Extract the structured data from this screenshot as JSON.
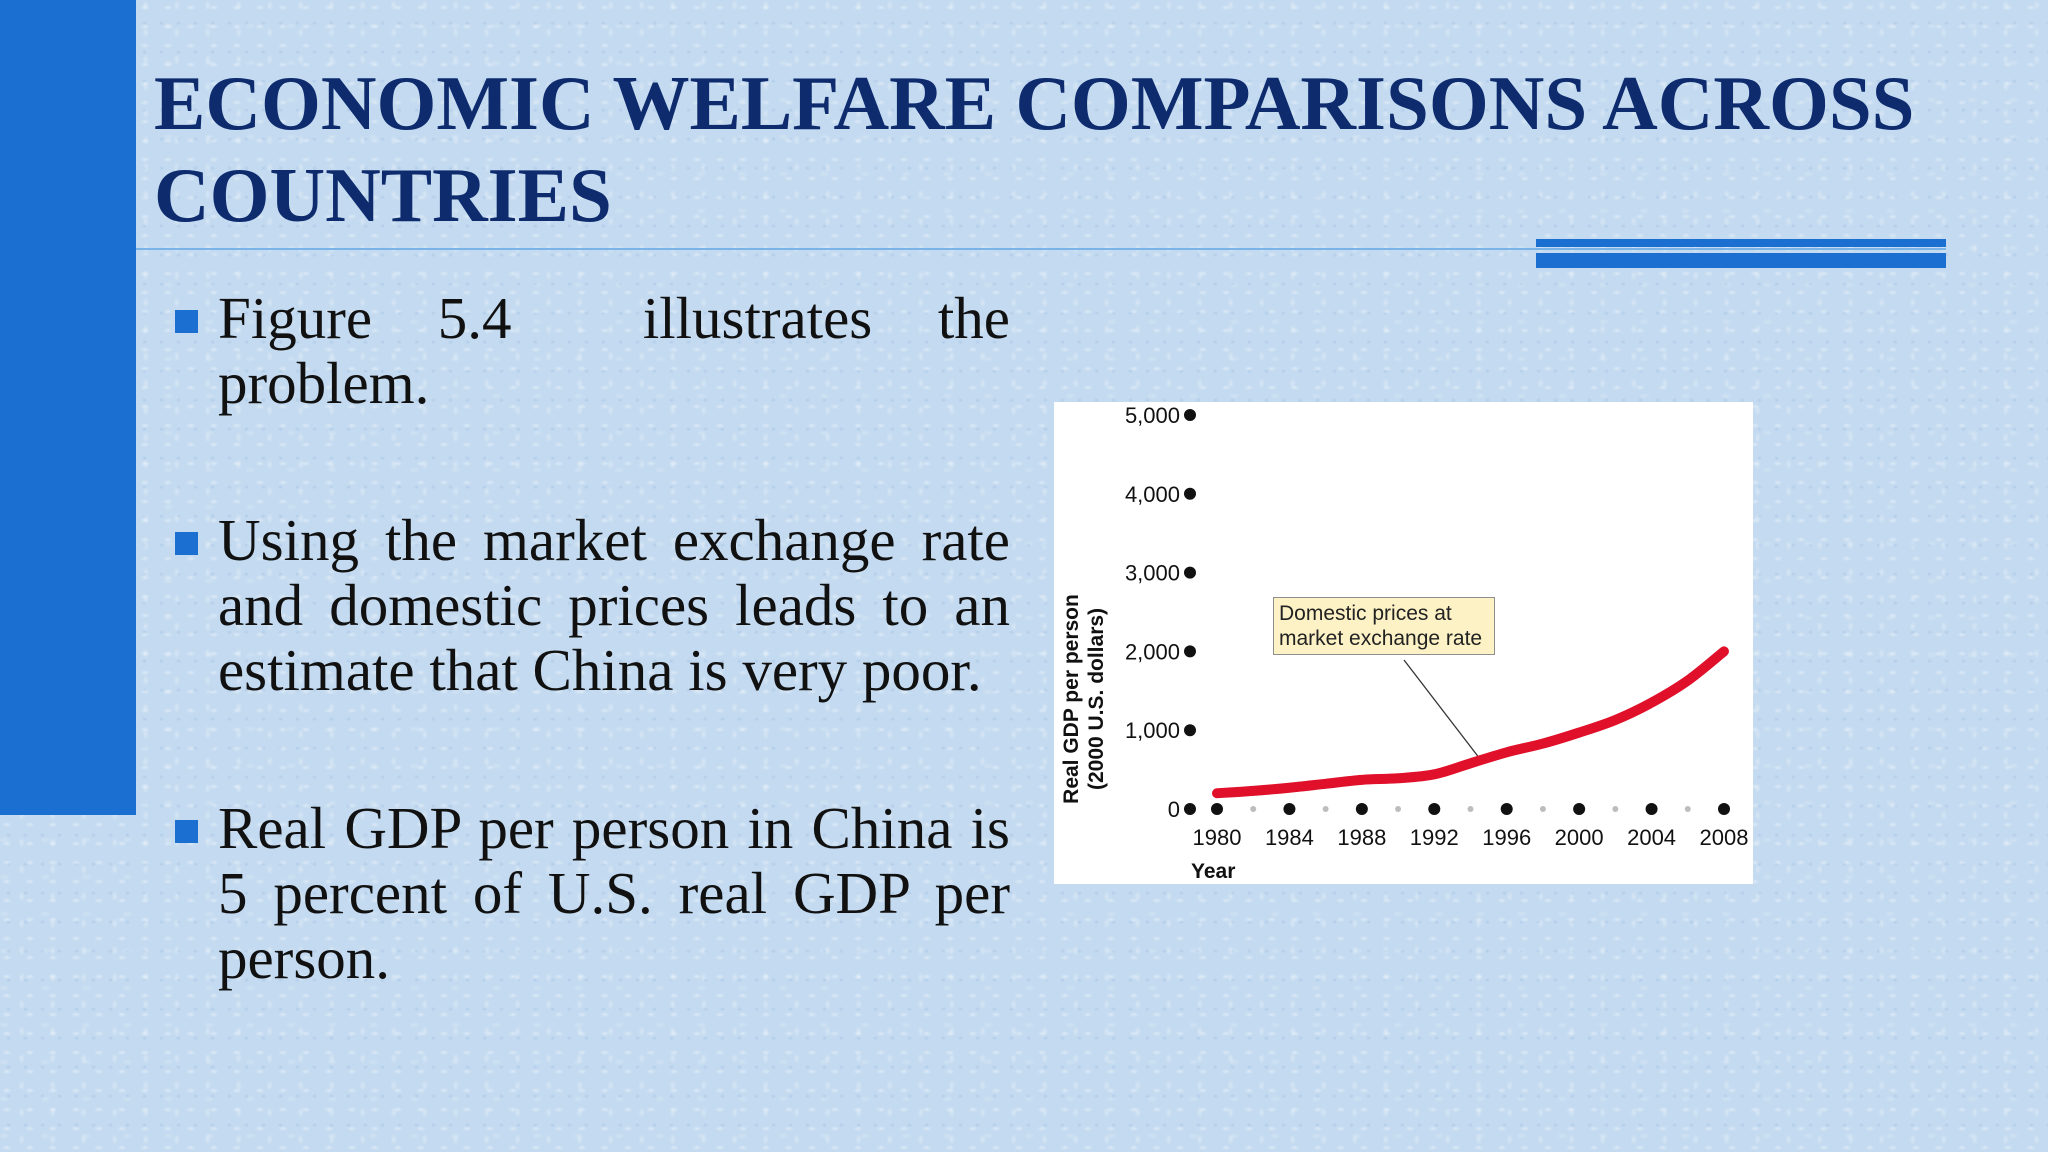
{
  "slide": {
    "title": "ECONOMIC WELFARE COMPARISONS ACROSS COUNTRIES",
    "bullets": [
      "Figure 5.4  illustrates the problem.",
      "Using the market exchange rate and domestic prices leads to an estimate that China is very poor.",
      "Real GDP per person in China is 5 percent of U.S. real GDP per person."
    ]
  },
  "colors": {
    "accent": "#1a6fd0",
    "title": "#0e2b6e",
    "background": "#c3daf0",
    "series": "#e0102a",
    "annotation_fill": "#fcf2c6"
  },
  "icons": {
    "bullet": "square-bullet-icon"
  },
  "chart_data": {
    "type": "line",
    "x": [
      1980,
      1982,
      1984,
      1986,
      1988,
      1990,
      1992,
      1994,
      1996,
      1998,
      2000,
      2002,
      2004,
      2006,
      2008
    ],
    "series": [
      {
        "name": "Domestic prices at market exchange rate",
        "values": [
          200,
          230,
          270,
          320,
          370,
          390,
          440,
          580,
          720,
          830,
          970,
          1130,
          1350,
          1630,
          2000
        ]
      }
    ],
    "xlim": [
      1980,
      2008
    ],
    "ylim": [
      0,
      5000
    ],
    "xticks": [
      1980,
      1984,
      1988,
      1992,
      1996,
      2000,
      2004,
      2008
    ],
    "yticks": [
      0,
      1000,
      2000,
      3000,
      4000,
      5000
    ],
    "ytick_labels": [
      "0",
      "1,000",
      "2,000",
      "3,000",
      "4,000",
      "5,000"
    ],
    "xlabel": "Year",
    "ylabel_lines": [
      "Real GDP per person",
      "(2000 U.S. dollars)"
    ],
    "grid": false,
    "legend": "annotation-callout"
  }
}
